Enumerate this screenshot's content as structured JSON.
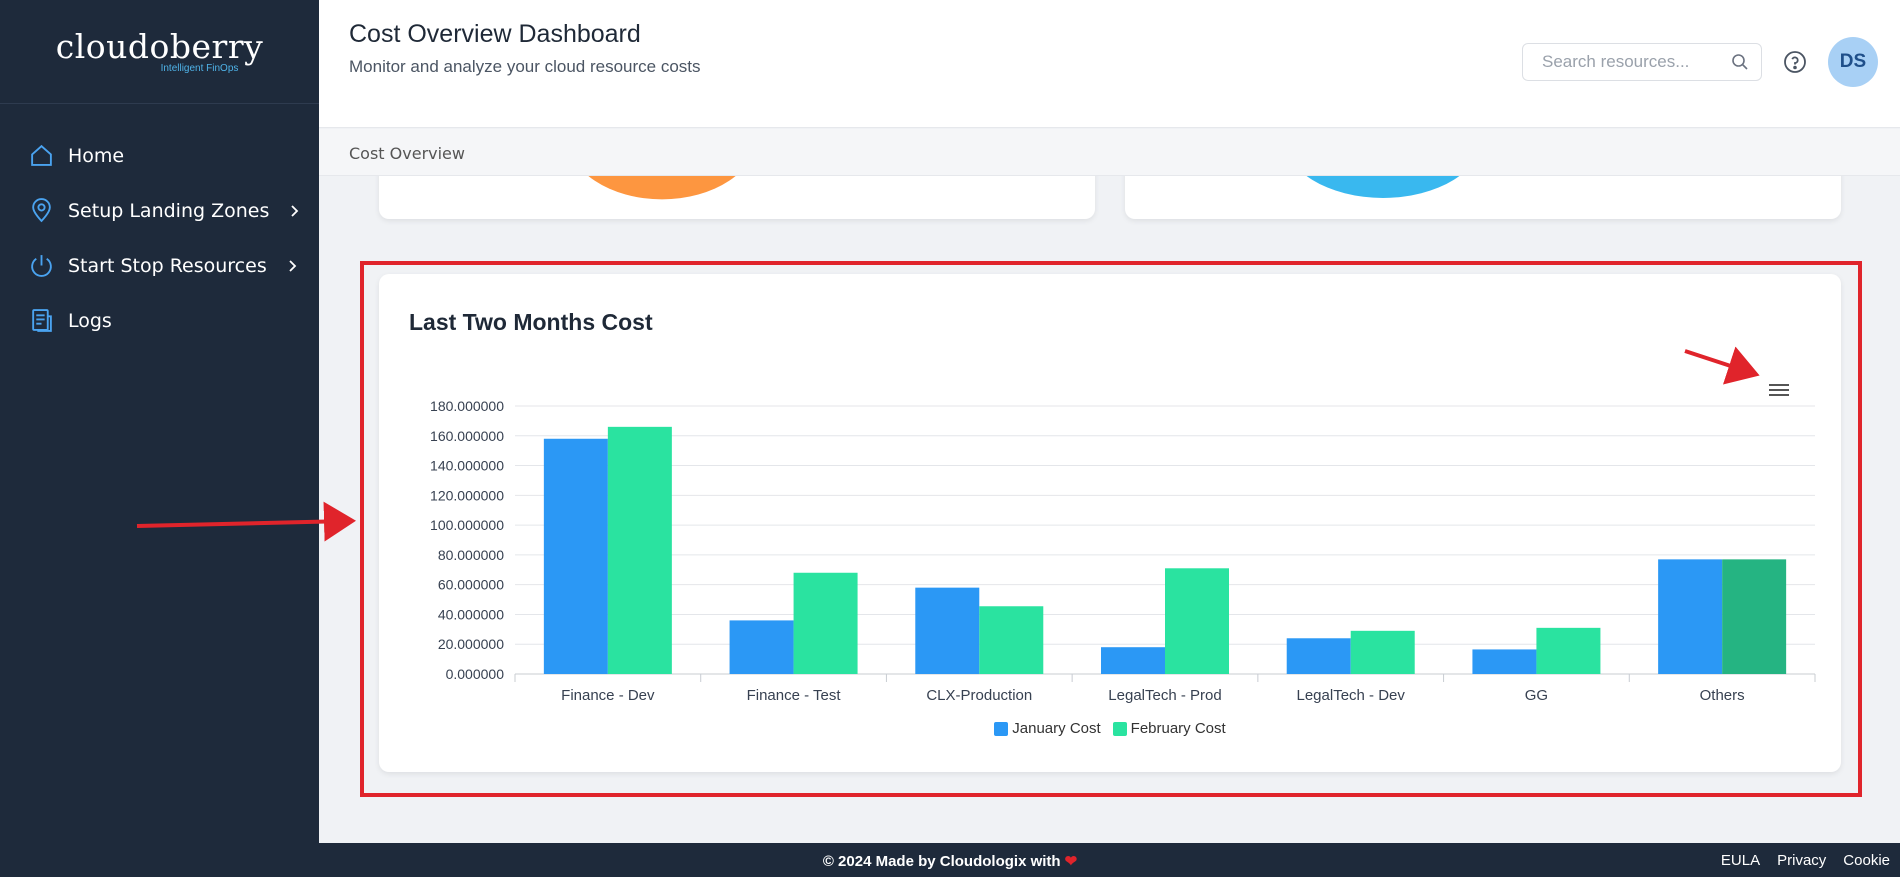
{
  "brand": {
    "name": "cloudoberry",
    "tagline": "Intelligent FinOps"
  },
  "sidebar": {
    "items": [
      {
        "label": "Home",
        "icon": "home-icon",
        "has_submenu": false
      },
      {
        "label": "Setup Landing Zones",
        "icon": "map-pin-icon",
        "has_submenu": true
      },
      {
        "label": "Start Stop Resources",
        "icon": "power-icon",
        "has_submenu": true
      },
      {
        "label": "Logs",
        "icon": "logs-icon",
        "has_submenu": false
      }
    ]
  },
  "header": {
    "title": "Cost Overview Dashboard",
    "subtitle": "Monitor and analyze your cloud resource costs",
    "search_placeholder": "Search resources...",
    "avatar_initials": "DS"
  },
  "breadcrumb": "Cost Overview",
  "chart_card": {
    "title": "Last Two Months Cost"
  },
  "chart_data": {
    "type": "bar",
    "title": "Last Two Months Cost",
    "categories": [
      "Finance - Dev",
      "Finance - Test",
      "CLX-Production",
      "LegalTech - Prod",
      "LegalTech - Dev",
      "GG",
      "Others"
    ],
    "series": [
      {
        "name": "January Cost",
        "color": "#2b98f5",
        "values": [
          158,
          36,
          58,
          18,
          24,
          16.5,
          77
        ]
      },
      {
        "name": "February Cost",
        "color": "#2ae3a0",
        "values": [
          166,
          68,
          45.5,
          71,
          29,
          31,
          77
        ]
      }
    ],
    "highlighted": {
      "series": 1,
      "category": 6,
      "color": "#25b482"
    },
    "yticks": [
      "0.000000",
      "20.000000",
      "40.000000",
      "60.000000",
      "80.000000",
      "100.000000",
      "120.000000",
      "140.000000",
      "160.000000",
      "180.000000"
    ],
    "ylim": [
      0,
      180
    ],
    "grid": true,
    "legend": "bottom-center"
  },
  "footer": {
    "credit": "© 2024 Made by Cloudologix with",
    "links": [
      "EULA",
      "Privacy",
      "Cookie"
    ]
  },
  "colors": {
    "sidebar_bg": "#1e2a3b",
    "accent_blue": "#2b98f5",
    "accent_green": "#2ae3a0",
    "annotation_red": "#e0242b",
    "pie_orange": "#fd9640",
    "pie_cyan": "#39b8ef"
  }
}
